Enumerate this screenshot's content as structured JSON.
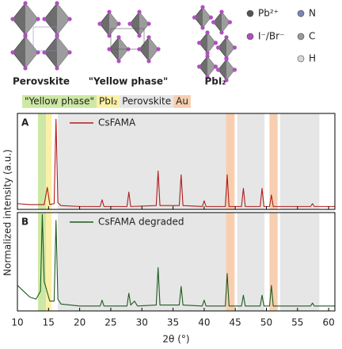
{
  "structures": {
    "labels": [
      "Perovskite",
      "\"Yellow phase\"",
      "PbI₂"
    ],
    "legend": [
      {
        "label": "Pb²⁺",
        "color": "#555555"
      },
      {
        "label": "I⁻/Br⁻",
        "color": "#b04fc0"
      },
      {
        "label": "N",
        "color": "#7c86b8"
      },
      {
        "label": "C",
        "color": "#9a9a9a"
      },
      {
        "label": "H",
        "color": "#d8d8d8"
      }
    ]
  },
  "chart_data": [
    {
      "type": "line",
      "label": "A",
      "ylabel": "Normalized intensity (a.u.)",
      "x": [
        10,
        12,
        14.3,
        14.8,
        15.2,
        15.9,
        16.2,
        16.5,
        17,
        20,
        23.3,
        23.6,
        23.9,
        27.6,
        27.9,
        28.2,
        32.3,
        32.6,
        32.9,
        36.0,
        36.3,
        36.6,
        39.7,
        40,
        40.3,
        43.4,
        43.7,
        44,
        46,
        46.3,
        46.6,
        49,
        49.3,
        49.6,
        50.5,
        50.8,
        51.1,
        54,
        57.1,
        57.4,
        57.7,
        61
      ],
      "series": [
        {
          "name": "CsFAMA",
          "color": "#b01c1c",
          "values": [
            0.06,
            0.05,
            0.05,
            0.23,
            0.05,
            0.06,
            0.94,
            0.07,
            0.04,
            0.03,
            0.03,
            0.1,
            0.03,
            0.03,
            0.18,
            0.03,
            0.04,
            0.4,
            0.04,
            0.04,
            0.36,
            0.04,
            0.03,
            0.09,
            0.03,
            0.03,
            0.36,
            0.03,
            0.03,
            0.22,
            0.03,
            0.03,
            0.22,
            0.03,
            0.03,
            0.15,
            0.03,
            0.03,
            0.03,
            0.06,
            0.03,
            0.03
          ]
        }
      ],
      "xlim": [
        10,
        61
      ],
      "ylim": [
        0,
        1
      ],
      "bands": [
        {
          "name": "\"Yellow phase\"",
          "color": "#cde8a4",
          "ranges": [
            [
              13.3,
              14.6
            ]
          ]
        },
        {
          "name": "PbI₂",
          "color": "#fbf0a6",
          "ranges": [
            [
              14.6,
              15.5
            ]
          ]
        },
        {
          "name": "Perovskite",
          "color": "#e6e6e6",
          "ranges": [
            [
              16.5,
              43.5
            ],
            [
              45.3,
              49.7
            ],
            [
              52.2,
              58.5
            ]
          ]
        },
        {
          "name": "Au",
          "color": "#f7cfb0",
          "ranges": [
            [
              43.5,
              44.9
            ],
            [
              50.5,
              51.8
            ]
          ]
        }
      ]
    },
    {
      "type": "line",
      "label": "B",
      "xlabel": "2θ (°)",
      "x": [
        10,
        11,
        12,
        13,
        13.7,
        14.0,
        14.3,
        15.2,
        15.9,
        16.2,
        16.5,
        17,
        20,
        23.3,
        23.6,
        23.9,
        27.6,
        27.9,
        28.2,
        28.8,
        29.3,
        32.3,
        32.6,
        32.9,
        36.0,
        36.3,
        36.6,
        39.7,
        40,
        40.3,
        43.4,
        43.7,
        44,
        46,
        46.3,
        46.6,
        49,
        49.3,
        49.6,
        50.5,
        50.8,
        51.1,
        54,
        57.1,
        57.4,
        57.7,
        61
      ],
      "series": [
        {
          "name": "CsFAMA degraded",
          "color": "#1f5a1f",
          "values": [
            0.26,
            0.2,
            0.14,
            0.12,
            0.2,
            0.98,
            0.3,
            0.1,
            0.1,
            0.92,
            0.12,
            0.07,
            0.05,
            0.05,
            0.11,
            0.05,
            0.05,
            0.18,
            0.06,
            0.1,
            0.05,
            0.06,
            0.44,
            0.06,
            0.06,
            0.25,
            0.06,
            0.05,
            0.11,
            0.05,
            0.05,
            0.38,
            0.05,
            0.05,
            0.16,
            0.05,
            0.05,
            0.16,
            0.05,
            0.05,
            0.26,
            0.05,
            0.05,
            0.05,
            0.08,
            0.05,
            0.05
          ]
        }
      ],
      "xlim": [
        10,
        61
      ],
      "ylim": [
        0,
        1
      ],
      "xticks": [
        10,
        15,
        20,
        25,
        30,
        35,
        40,
        45,
        50,
        55,
        60
      ]
    }
  ]
}
